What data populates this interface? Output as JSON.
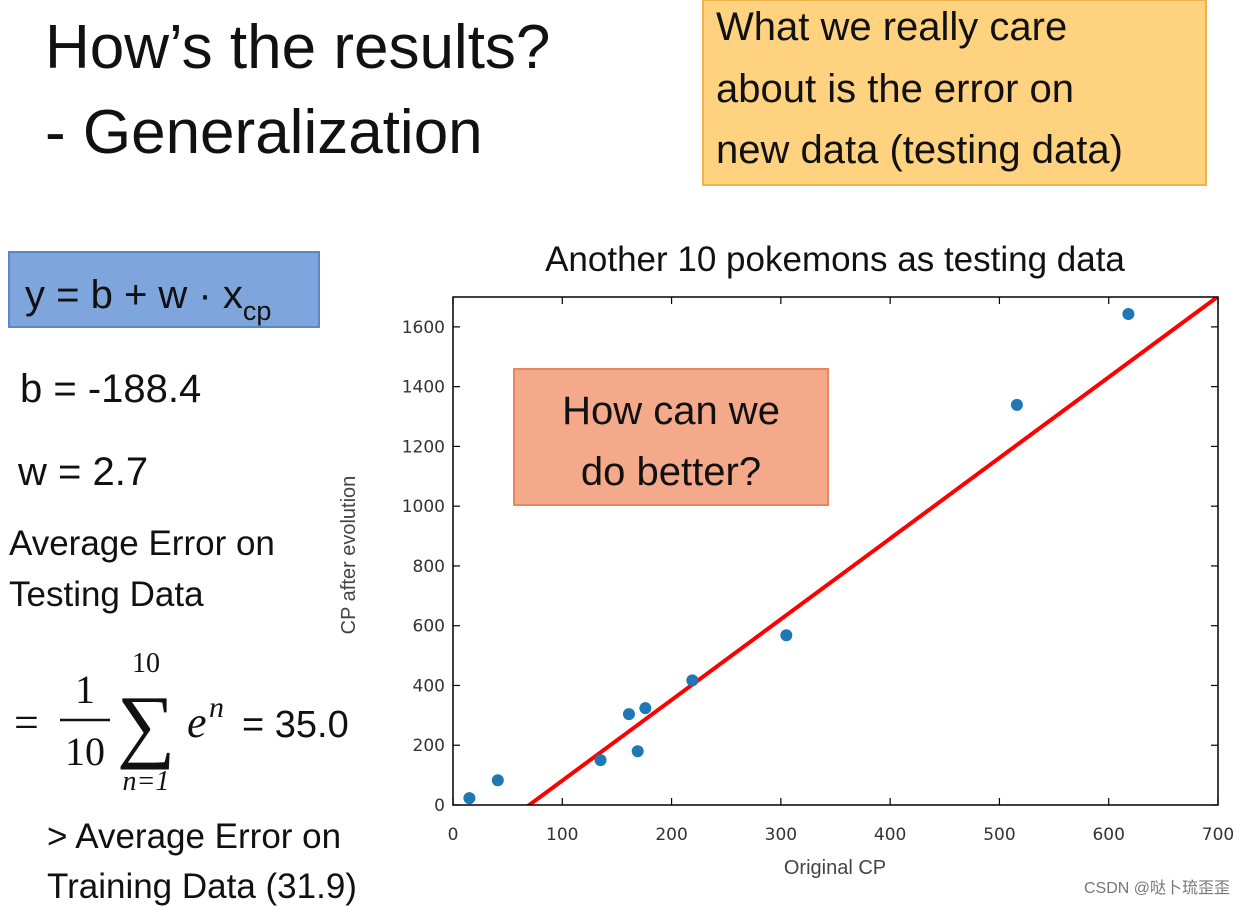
{
  "slide": {
    "title_lines": [
      "How’s the results?",
      "- Generalization"
    ],
    "note_lines": [
      "What we really care",
      "about is the error on",
      "new data (testing data)"
    ],
    "model": {
      "main": "y = b + w · x",
      "sub": "cp"
    },
    "b_text": "b = -188.4",
    "w_text": "w = 2.7",
    "avg_lines": [
      "Average Error on",
      "Testing Data"
    ],
    "formula": {
      "eq": "=",
      "num": "1",
      "den": "10",
      "sigma": "∑",
      "upper": "10",
      "lower": "n=1",
      "term": "e",
      "sup": "n",
      "result": "= 35.0"
    },
    "compare_lines": [
      "> Average Error on",
      "Training Data (31.9)"
    ],
    "question_lines": [
      "How can we",
      "do better?"
    ],
    "watermark": "CSDN @哒卜琉歪歪"
  },
  "chart_data": {
    "type": "scatter",
    "title": "Another 10 pokemons as testing data",
    "x_label": "Original CP",
    "y_label": "CP after evolution",
    "x": [
      15,
      41,
      135,
      161,
      169,
      176,
      219,
      305,
      516,
      618
    ],
    "values": [
      23,
      83,
      150,
      304,
      180,
      324,
      417,
      568,
      1339,
      1643
    ],
    "color": "#1f77b4",
    "fit_line": {
      "intercept": -188.4,
      "slope": 2.7,
      "color": "#ff0000"
    },
    "xlim": [
      0,
      700
    ],
    "ylim": [
      0,
      1700
    ],
    "xticks": [
      0,
      100,
      200,
      300,
      400,
      500,
      600,
      700
    ],
    "yticks": [
      0,
      200,
      400,
      600,
      800,
      1000,
      1200,
      1400,
      1600
    ]
  }
}
